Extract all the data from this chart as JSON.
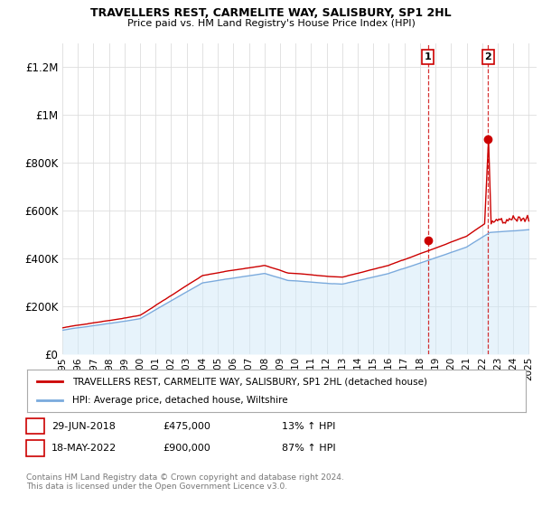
{
  "title": "TRAVELLERS REST, CARMELITE WAY, SALISBURY, SP1 2HL",
  "subtitle": "Price paid vs. HM Land Registry's House Price Index (HPI)",
  "legend_line1": "TRAVELLERS REST, CARMELITE WAY, SALISBURY, SP1 2HL (detached house)",
  "legend_line2": "HPI: Average price, detached house, Wiltshire",
  "annotation1_label": "1",
  "annotation1_date": "29-JUN-2018",
  "annotation1_price": "£475,000",
  "annotation1_hpi": "13% ↑ HPI",
  "annotation2_label": "2",
  "annotation2_date": "18-MAY-2022",
  "annotation2_price": "£900,000",
  "annotation2_hpi": "87% ↑ HPI",
  "footer": "Contains HM Land Registry data © Crown copyright and database right 2024.\nThis data is licensed under the Open Government Licence v3.0.",
  "red_color": "#cc0000",
  "blue_color": "#7aaadd",
  "blue_fill": "#d0e8f8",
  "background_color": "#ffffff",
  "grid_color": "#dddddd",
  "ylim": [
    0,
    1300000
  ],
  "yticks": [
    0,
    200000,
    400000,
    600000,
    800000,
    1000000,
    1200000
  ],
  "ytick_labels": [
    "£0",
    "£200K",
    "£400K",
    "£600K",
    "£800K",
    "£1M",
    "£1.2M"
  ],
  "sale1_x": 2018.5,
  "sale1_y": 475000,
  "sale2_x": 2022.38,
  "sale2_y": 900000,
  "xmin": 1995,
  "xmax": 2025.5
}
